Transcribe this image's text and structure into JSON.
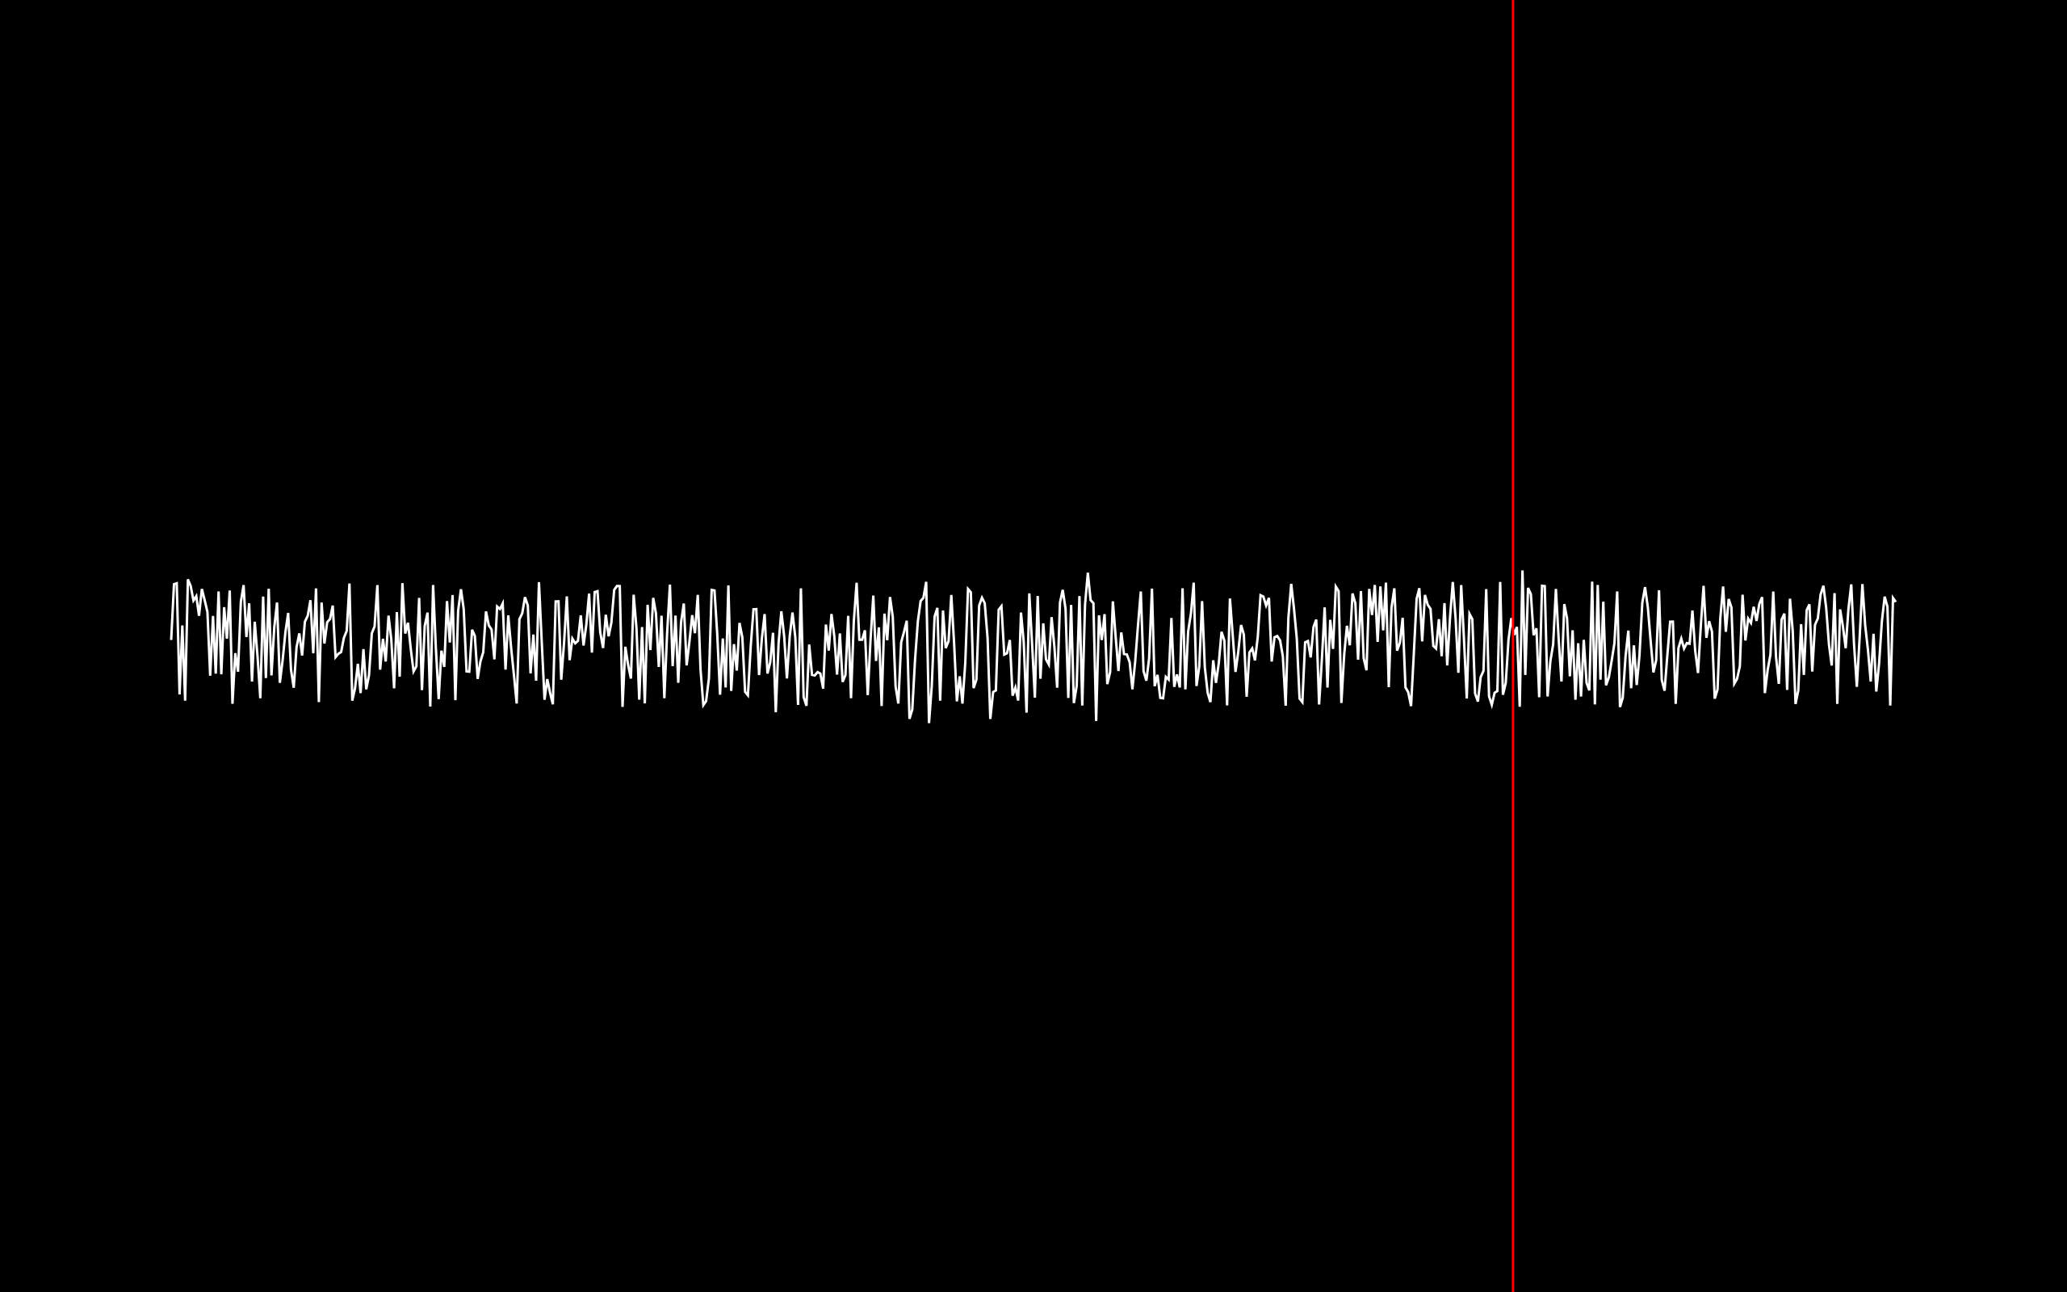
{
  "colors": {
    "background": "#000000",
    "waveform": "#ffffff",
    "playhead": "#ff0000"
  },
  "waveform": {
    "seed": 20240613,
    "sample_count": 620,
    "amplitude_range": [
      -1,
      1
    ]
  },
  "playhead": {
    "position_fraction": 0.732
  }
}
